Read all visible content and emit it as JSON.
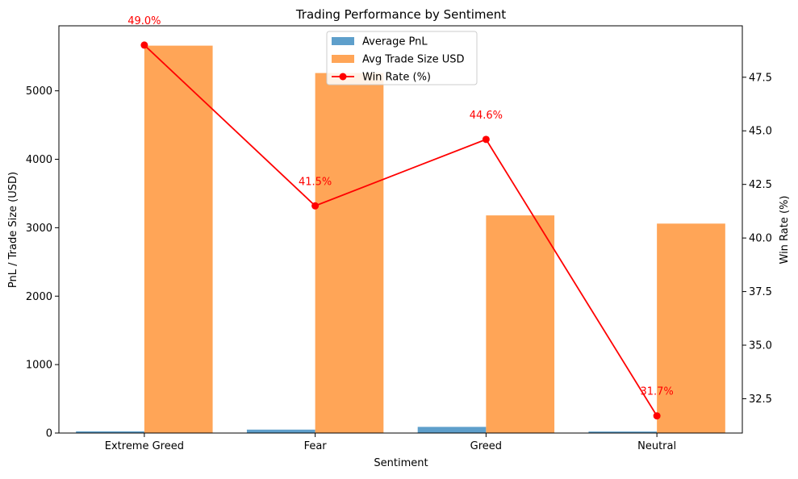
{
  "chart_data": {
    "type": "bar",
    "title": "Trading Performance by Sentiment",
    "xlabel": "Sentiment",
    "ylabel": "PnL / Trade Size (USD)",
    "ylabel_right": "Win Rate (%)",
    "categories": [
      "Extreme Greed",
      "Fear",
      "Greed",
      "Neutral"
    ],
    "ylim": [
      0,
      5950
    ],
    "yticks": [
      0,
      1000,
      2000,
      3000,
      4000,
      5000
    ],
    "ylim_right": [
      30.9,
      49.9
    ],
    "yticks_right": [
      32.5,
      35.0,
      37.5,
      40.0,
      42.5,
      45.0,
      47.5
    ],
    "series": [
      {
        "name": "Average PnL",
        "type": "bar",
        "color": "#5e9fcb",
        "values": [
          25,
          50,
          90,
          22
        ]
      },
      {
        "name": "Avg Trade Size USD",
        "type": "bar",
        "color": "#ffa557",
        "values": [
          5660,
          5260,
          3180,
          3060
        ]
      },
      {
        "name": "Win Rate (%)",
        "type": "line",
        "axis": "right",
        "color": "#ff0000",
        "values": [
          49.0,
          41.5,
          44.6,
          31.7
        ],
        "labels": [
          "49.0%",
          "41.5%",
          "44.6%",
          "31.7%"
        ]
      }
    ],
    "legend": "upper-center",
    "grid": false
  }
}
